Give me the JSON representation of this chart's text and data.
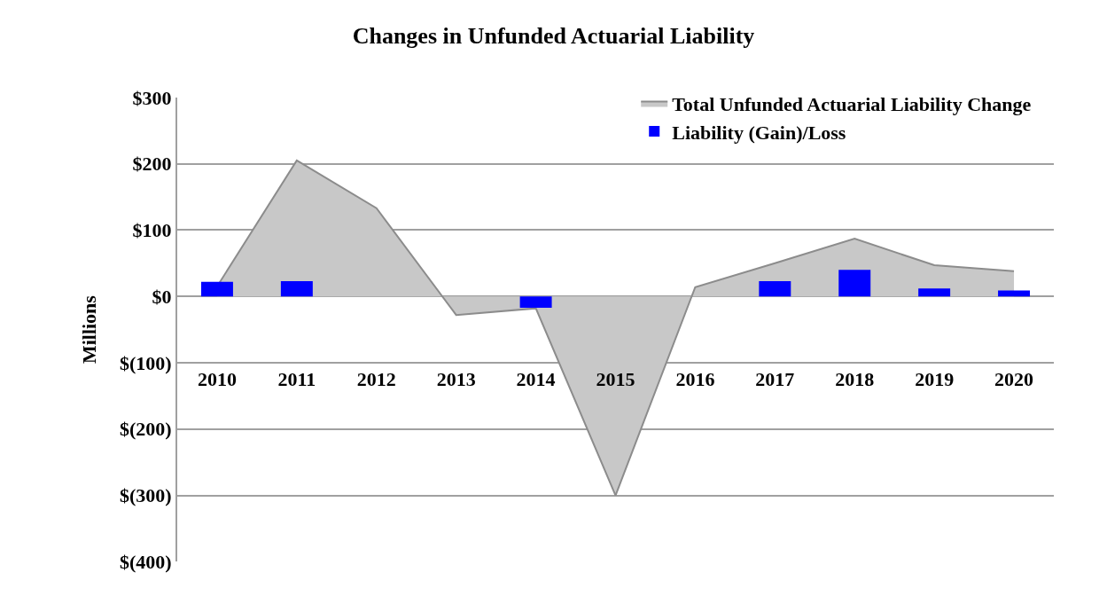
{
  "chart_data": {
    "type": "area",
    "title": "Changes in Unfunded Actuarial Liability",
    "ylabel": "Millions",
    "categories": [
      "2010",
      "2011",
      "2012",
      "2013",
      "2014",
      "2015",
      "2016",
      "2017",
      "2018",
      "2019",
      "2020"
    ],
    "series": [
      {
        "name": "Total Unfunded Actuarial Liability Change",
        "color": "#c8c8c8",
        "values": [
          15,
          205,
          133,
          -28,
          -18,
          -300,
          14,
          50,
          87,
          47,
          38
        ]
      },
      {
        "name": "Liability (Gain)/Loss",
        "type": "bar",
        "color": "#0000ff",
        "values": [
          22,
          23,
          null,
          null,
          -17,
          null,
          null,
          23,
          40,
          12,
          9
        ]
      }
    ],
    "ylim": [
      -400,
      300
    ],
    "yticks": [
      {
        "value": 300,
        "label": "$300"
      },
      {
        "value": 200,
        "label": "$200"
      },
      {
        "value": 100,
        "label": "$100"
      },
      {
        "value": 0,
        "label": "$0"
      },
      {
        "value": -100,
        "label": "$(100)"
      },
      {
        "value": -200,
        "label": "$(200)"
      },
      {
        "value": -300,
        "label": "$(300)"
      },
      {
        "value": -400,
        "label": "$(400)"
      }
    ],
    "grid": "y",
    "legend": "top right"
  }
}
